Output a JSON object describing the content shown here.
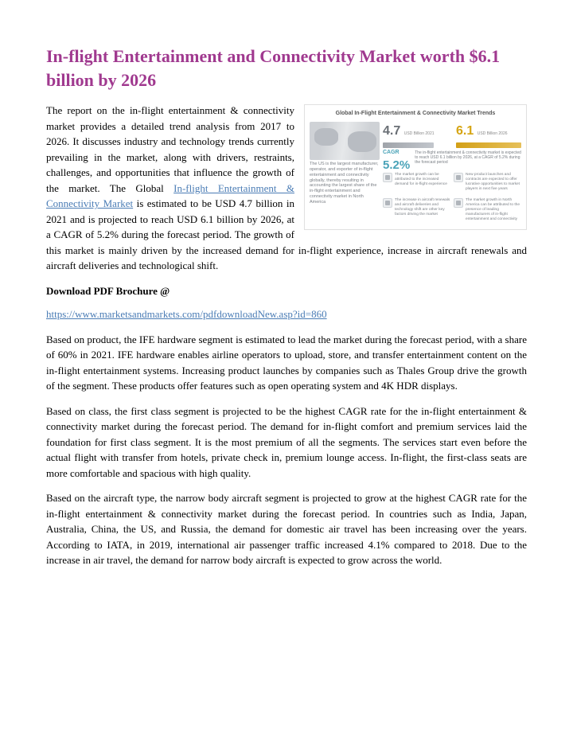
{
  "title": "In-flight Entertainment and Connectivity Market worth $6.1 billion by 2026",
  "intro_part1": "The report on the in-flight entertainment & connectivity market provides a detailed trend analysis from 2017 to 2026. It discusses industry and technology trends currently prevailing in the market, along with drivers, restraints, challenges, and opportunities that influence the growth of the market. The Global ",
  "intro_link_text": "In-flight Entertainment & Connectivity Market",
  "intro_part2": " is estimated to be USD 4.7 billion in 2021 and is projected to reach USD 6.1 billion by 2026, at a CAGR of 5.2% during the forecast period. The growth of this market is mainly driven by the increased demand for in-flight experience, increase in aircraft renewals and aircraft deliveries and technological shift.",
  "download_label": "Download PDF Brochure @",
  "download_link": "https://www.marketsandmarkets.com/pdfdownloadNew.asp?id=860",
  "para_product": "Based on product, the IFE hardware segment is estimated to lead the market during the forecast period, with a share of 60% in 2021. IFE hardware enables airline operators to upload, store, and transfer entertainment content on the in-flight entertainment systems. Increasing product launches by companies such as Thales Group drive the growth of the segment. These products offer features such as open operating system and 4K HDR displays.",
  "para_class": "Based on class, the first class segment is projected to be the highest CAGR rate for the in-flight entertainment & connectivity market during the forecast period. The demand for in-flight comfort and premium services laid the foundation for first class segment. It is the most premium of all the segments. The services start even before the actual flight with transfer from hotels, private check in, premium lounge access. In-flight, the first-class seats are more comfortable and spacious with high quality.",
  "para_aircraft": "Based on the aircraft type, the narrow body aircraft segment is projected to grow at the highest CAGR rate for the in-flight entertainment & connectivity market during the forecast period. In countries such as India, Japan, Australia, China, the US, and Russia, the demand for domestic air travel has been increasing over the years. According to IATA, in 2019, international air passenger traffic increased 4.1% compared to 2018. Due to the increase in air travel, the demand for narrow body aircraft is expected to grow across the world.",
  "infographic": {
    "title": "Global In-Flight Entertainment & Connectivity Market Trends",
    "val_2021": "4.7",
    "unit_2021": "USD Billion 2021",
    "val_2026": "6.1",
    "unit_2026": "USD Billion 2026",
    "cagr_label": "CAGR",
    "cagr_value": "5.2%",
    "cagr_text": "The in-flight entertainment & connectivity market is expected to reach USD 6.1 billion by 2026, at a CAGR of 5.2% during the forecast period",
    "left_text": "The US is the largest manufacturer, operator, and exporter of in-flight entertainment and connectivity globally, thereby resulting in accounting the largest share of the in-flight entertainment and connectivity market in North America",
    "row1_left": "The market growth can be attributed to the increased demand for in-flight experience",
    "row1_right": "New product launches and contracts are expected to offer lucrative opportunities to market players in next five years",
    "row2_left": "The increase in aircraft renewals and aircraft deliveries and technology shift are other key factors driving the market",
    "row2_right": "The market growth in North America can be attributed to the presence of leading manufacturers of in-flight entertainment and connectivity",
    "colors": {
      "title_color": "#a0398f",
      "link_color": "#4a7cb5",
      "val2021_color": "#6a6f75",
      "val2026_color": "#d6a514",
      "cagr_color": "#4aa3b8"
    }
  }
}
